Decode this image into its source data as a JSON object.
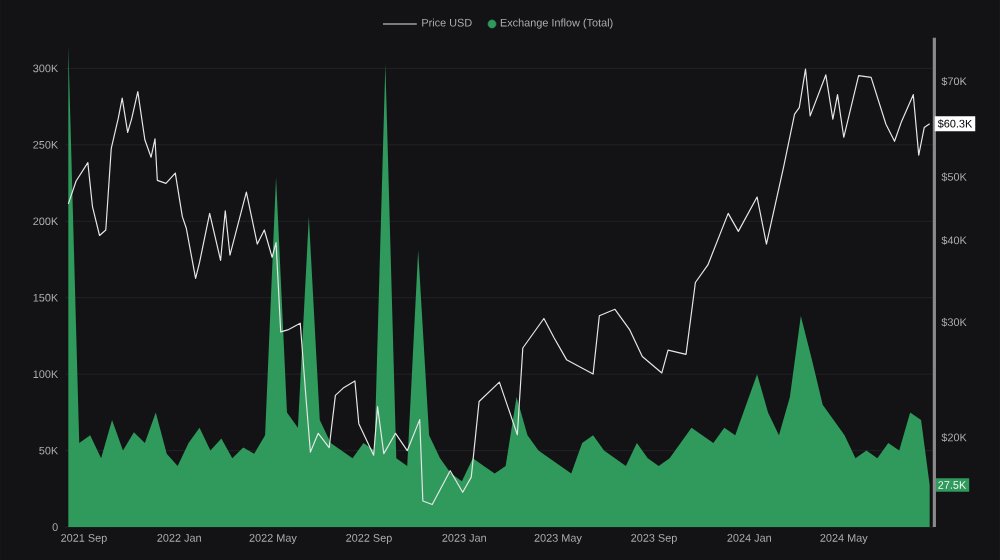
{
  "chart_data": {
    "type": "area",
    "grid": "y",
    "legend": "top",
    "log": "y2",
    "xlim": [
      "2021-08-08",
      "2024-08-25"
    ],
    "xticks": [
      {
        "value": "2021-09-01",
        "label": "2021 Sep"
      },
      {
        "value": "2022-01-01",
        "label": "2022 Jan"
      },
      {
        "value": "2022-05-01",
        "label": "2022 May"
      },
      {
        "value": "2022-09-01",
        "label": "2022 Sep"
      },
      {
        "value": "2023-01-01",
        "label": "2023 Jan"
      },
      {
        "value": "2023-05-01",
        "label": "2023 May"
      },
      {
        "value": "2023-09-01",
        "label": "2023 Sep"
      },
      {
        "value": "2024-01-01",
        "label": "2024 Jan"
      },
      {
        "value": "2024-05-01",
        "label": "2024 May"
      }
    ],
    "ylim": [
      0,
      320000
    ],
    "yticks": [
      0,
      {
        "value": 50000,
        "label": "50K"
      },
      {
        "value": 100000,
        "label": "100K"
      },
      {
        "value": 150000,
        "label": "150K"
      },
      {
        "value": 200000,
        "label": "200K"
      },
      {
        "value": 250000,
        "label": "250K"
      },
      {
        "value": 300000,
        "label": "300K"
      }
    ],
    "y2lim": [
      14600,
      81600
    ],
    "y2ticks": [
      {
        "value": 20000,
        "label": "$20K"
      },
      {
        "value": 30000,
        "label": "$30K"
      },
      {
        "value": 40000,
        "label": "$40K"
      },
      {
        "value": 50000,
        "label": "$50K"
      },
      {
        "value": 70000,
        "label": "$70K"
      }
    ],
    "series": [
      {
        "name": "Price USD",
        "type": "line",
        "axis": "y2",
        "color": "#e6e6e6",
        "x": [
          "2021-08-12",
          "2021-08-22",
          "2021-09-06",
          "2021-09-12",
          "2021-09-21",
          "2021-09-29",
          "2021-10-06",
          "2021-10-15",
          "2021-10-20",
          "2021-10-27",
          "2021-11-01",
          "2021-11-09",
          "2021-11-18",
          "2021-11-26",
          "2021-12-01",
          "2021-12-04",
          "2021-12-15",
          "2021-12-27",
          "2022-01-05",
          "2022-01-10",
          "2022-01-22",
          "2022-01-27",
          "2022-02-09",
          "2022-02-23",
          "2022-03-01",
          "2022-03-07",
          "2022-03-28",
          "2022-04-11",
          "2022-04-20",
          "2022-04-30",
          "2022-05-05",
          "2022-05-11",
          "2022-05-20",
          "2022-06-05",
          "2022-06-13",
          "2022-06-18",
          "2022-06-28",
          "2022-07-12",
          "2022-07-20",
          "2022-07-30",
          "2022-08-14",
          "2022-08-19",
          "2022-09-07",
          "2022-09-12",
          "2022-09-20",
          "2022-10-05",
          "2022-10-20",
          "2022-11-05",
          "2022-11-09",
          "2022-11-21",
          "2022-12-14",
          "2022-12-30",
          "2023-01-10",
          "2023-01-20",
          "2023-02-15",
          "2023-03-10",
          "2023-03-17",
          "2023-04-13",
          "2023-04-26",
          "2023-05-12",
          "2023-06-15",
          "2023-06-23",
          "2023-07-13",
          "2023-08-01",
          "2023-08-17",
          "2023-09-11",
          "2023-09-19",
          "2023-10-12",
          "2023-10-24",
          "2023-11-09",
          "2023-12-05",
          "2023-12-18",
          "2024-01-11",
          "2024-01-23",
          "2024-02-14",
          "2024-02-28",
          "2024-03-05",
          "2024-03-13",
          "2024-03-19",
          "2024-04-08",
          "2024-04-17",
          "2024-04-23",
          "2024-05-01",
          "2024-05-20",
          "2024-06-05",
          "2024-06-24",
          "2024-07-05",
          "2024-07-14",
          "2024-07-29",
          "2024-08-05",
          "2024-08-12",
          "2024-08-19"
        ],
        "values": [
          45500,
          49300,
          52600,
          45000,
          40700,
          41500,
          55300,
          61500,
          66000,
          58500,
          61300,
          67500,
          57000,
          53600,
          57200,
          49400,
          48900,
          50700,
          43500,
          41800,
          35000,
          37000,
          44000,
          37300,
          44400,
          38000,
          47400,
          39500,
          41500,
          37700,
          39700,
          29000,
          29200,
          29900,
          22500,
          19000,
          20300,
          19300,
          23200,
          23800,
          24400,
          21000,
          18800,
          22300,
          18900,
          20300,
          19100,
          21300,
          16000,
          15800,
          17800,
          16500,
          17400,
          22700,
          24300,
          20200,
          27400,
          30400,
          28400,
          26300,
          25000,
          30700,
          31400,
          29200,
          26600,
          25100,
          27200,
          26800,
          34500,
          36700,
          44000,
          41300,
          46600,
          39500,
          51800,
          62400,
          63800,
          73100,
          62000,
          71600,
          61300,
          66800,
          57500,
          71400,
          71000,
          60200,
          56700,
          60800,
          66800,
          54000,
          59500,
          60300
        ],
        "value_labels": [
          null,
          null,
          null,
          null,
          null,
          null,
          null,
          null,
          null,
          null,
          null,
          null,
          null,
          null,
          null,
          null,
          null,
          null,
          null,
          null,
          null,
          null,
          null,
          null,
          null,
          null,
          null,
          null,
          null,
          null,
          null,
          null,
          null,
          null,
          null,
          null,
          null,
          null,
          null,
          null,
          null,
          null,
          null,
          null,
          null,
          null,
          null,
          null,
          null,
          null,
          null,
          null,
          null,
          null,
          null,
          null,
          null,
          null,
          null,
          null,
          null,
          null,
          null,
          null,
          null,
          null,
          null,
          null,
          null,
          null,
          null,
          null,
          null,
          null,
          null,
          null,
          null,
          null,
          null,
          null,
          null,
          null,
          null,
          null,
          null,
          null,
          null,
          null,
          null,
          null,
          null,
          "$60.3K"
        ]
      },
      {
        "name": "Exchange Inflow (Total)",
        "axis": "y",
        "color": "#2f9a5c",
        "x": [
          "2021-08-12",
          "2021-08-26",
          "2021-09-09",
          "2021-09-23",
          "2021-10-07",
          "2021-10-21",
          "2021-11-04",
          "2021-11-18",
          "2021-12-02",
          "2021-12-16",
          "2021-12-30",
          "2022-01-13",
          "2022-01-27",
          "2022-02-10",
          "2022-02-24",
          "2022-03-10",
          "2022-03-24",
          "2022-04-07",
          "2022-04-21",
          "2022-05-05",
          "2022-05-19",
          "2022-06-02",
          "2022-06-16",
          "2022-06-30",
          "2022-07-14",
          "2022-07-28",
          "2022-08-11",
          "2022-08-25",
          "2022-09-08",
          "2022-09-22",
          "2022-10-06",
          "2022-10-20",
          "2022-11-03",
          "2022-11-17",
          "2022-12-01",
          "2022-12-15",
          "2022-12-29",
          "2023-01-12",
          "2023-01-26",
          "2023-02-09",
          "2023-02-23",
          "2023-03-09",
          "2023-03-23",
          "2023-04-06",
          "2023-04-20",
          "2023-05-04",
          "2023-05-18",
          "2023-06-01",
          "2023-06-15",
          "2023-06-29",
          "2023-07-13",
          "2023-07-27",
          "2023-08-10",
          "2023-08-24",
          "2023-09-07",
          "2023-09-21",
          "2023-10-05",
          "2023-10-19",
          "2023-11-02",
          "2023-11-16",
          "2023-11-30",
          "2023-12-14",
          "2023-12-28",
          "2024-01-11",
          "2024-01-25",
          "2024-02-08",
          "2024-02-22",
          "2024-03-07",
          "2024-03-21",
          "2024-04-04",
          "2024-04-18",
          "2024-05-02",
          "2024-05-16",
          "2024-05-30",
          "2024-06-13",
          "2024-06-27",
          "2024-07-11",
          "2024-07-25",
          "2024-08-08",
          "2024-08-19"
        ],
        "values": [
          315000,
          55000,
          60000,
          45000,
          70000,
          50000,
          62000,
          55000,
          75000,
          48000,
          40000,
          55000,
          65000,
          50000,
          58000,
          45000,
          52000,
          48000,
          60000,
          229000,
          75000,
          65000,
          203000,
          70000,
          55000,
          50000,
          45000,
          55000,
          50000,
          303000,
          45000,
          40000,
          181000,
          60000,
          45000,
          35000,
          30000,
          45000,
          40000,
          35000,
          40000,
          85000,
          60000,
          50000,
          45000,
          40000,
          35000,
          55000,
          60000,
          50000,
          45000,
          40000,
          55000,
          45000,
          40000,
          45000,
          55000,
          65000,
          60000,
          55000,
          65000,
          60000,
          80000,
          100000,
          75000,
          60000,
          85000,
          138000,
          110000,
          80000,
          70000,
          60000,
          45000,
          50000,
          45000,
          55000,
          50000,
          75000,
          70000,
          27500
        ],
        "value_labels": [
          null,
          null,
          null,
          null,
          null,
          null,
          null,
          null,
          null,
          null,
          null,
          null,
          null,
          null,
          null,
          null,
          null,
          null,
          null,
          null,
          null,
          null,
          null,
          null,
          null,
          null,
          null,
          null,
          null,
          null,
          null,
          null,
          null,
          null,
          null,
          null,
          null,
          null,
          null,
          null,
          null,
          null,
          null,
          null,
          null,
          null,
          null,
          null,
          null,
          null,
          null,
          null,
          null,
          null,
          null,
          null,
          null,
          null,
          null,
          null,
          null,
          null,
          null,
          null,
          null,
          null,
          null,
          null,
          null,
          null,
          null,
          null,
          null,
          null,
          null,
          null,
          null,
          null,
          null,
          "27.5K"
        ]
      }
    ]
  }
}
